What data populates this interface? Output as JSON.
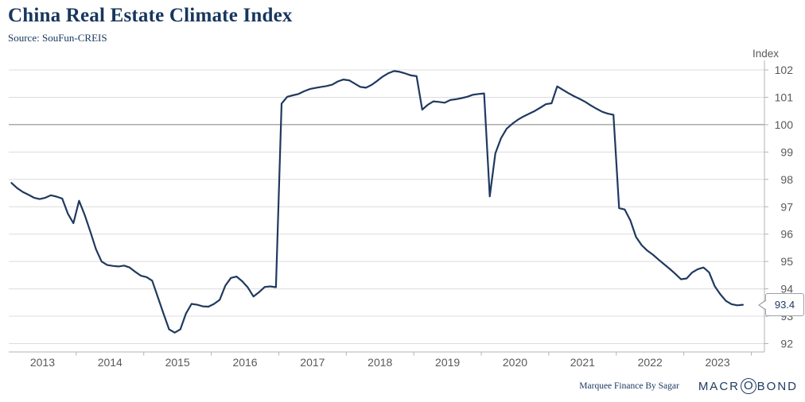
{
  "header": {
    "title": "China Real Estate Climate Index",
    "source": "Source: SouFun-CREIS"
  },
  "footer": {
    "credit": "Marquee Finance By Sagar",
    "logo": {
      "pre": "MACR",
      "o": "O",
      "post": "BOND"
    }
  },
  "chart_data": {
    "type": "line",
    "title": "China Real Estate Climate Index",
    "xlabel": "",
    "ylabel": "Index",
    "ylim": [
      92,
      102
    ],
    "grid": true,
    "legend_position": "none",
    "highlighted_gridline": 100,
    "y_ticks": [
      92,
      93,
      94,
      95,
      96,
      97,
      98,
      99,
      100,
      101,
      102
    ],
    "x_years": [
      "2013",
      "2014",
      "2015",
      "2016",
      "2017",
      "2018",
      "2019",
      "2020",
      "2021",
      "2022",
      "2023"
    ],
    "last_value_label": "93.4",
    "colors": {
      "line": "#20395f",
      "grid": "#dcdcdc",
      "major_grid": "#808080",
      "axis": "#b3b3b3",
      "tick_text": "#595959",
      "accent_text": "#17365d"
    },
    "series": [
      {
        "name": "China Real Estate Climate Index",
        "frequency": "monthly",
        "start": "2013-01",
        "end": "2023-11",
        "values": [
          97.87,
          97.68,
          97.54,
          97.44,
          97.33,
          97.28,
          97.33,
          97.42,
          97.37,
          97.3,
          96.75,
          96.4,
          97.22,
          96.7,
          96.1,
          95.45,
          95.0,
          94.87,
          94.84,
          94.82,
          94.85,
          94.78,
          94.62,
          94.48,
          94.43,
          94.3,
          93.7,
          93.1,
          92.52,
          92.4,
          92.52,
          93.1,
          93.45,
          93.42,
          93.36,
          93.35,
          93.45,
          93.6,
          94.12,
          94.4,
          94.45,
          94.28,
          94.05,
          93.72,
          93.88,
          94.07,
          94.09,
          94.06,
          100.77,
          101.02,
          101.07,
          101.12,
          101.22,
          101.3,
          101.34,
          101.38,
          101.41,
          101.46,
          101.58,
          101.65,
          101.62,
          101.5,
          101.38,
          101.35,
          101.45,
          101.6,
          101.76,
          101.88,
          101.96,
          101.93,
          101.87,
          101.8,
          101.77,
          100.55,
          100.73,
          100.85,
          100.83,
          100.8,
          100.9,
          100.93,
          100.97,
          101.02,
          101.09,
          101.12,
          101.14,
          97.38,
          98.95,
          99.5,
          99.85,
          100.03,
          100.18,
          100.3,
          100.4,
          100.5,
          100.62,
          100.75,
          100.78,
          101.4,
          101.27,
          101.15,
          101.04,
          100.94,
          100.83,
          100.7,
          100.58,
          100.47,
          100.4,
          100.36,
          96.95,
          96.9,
          96.5,
          95.9,
          95.6,
          95.4,
          95.25,
          95.07,
          94.9,
          94.73,
          94.55,
          94.35,
          94.38,
          94.6,
          94.72,
          94.78,
          94.6,
          94.1,
          93.8,
          93.56,
          93.44,
          93.4,
          93.42
        ]
      }
    ]
  }
}
